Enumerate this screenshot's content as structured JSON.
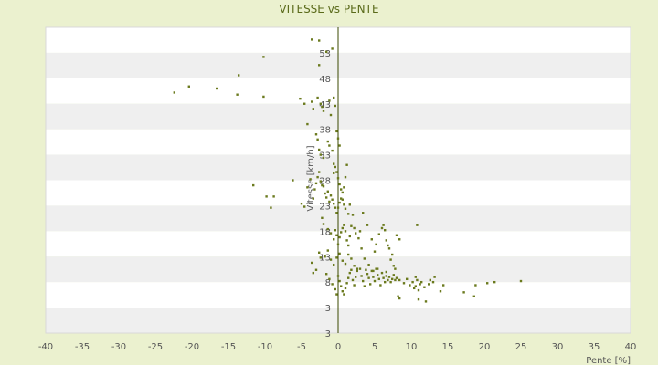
{
  "chart_data": {
    "type": "scatter",
    "title": "VITESSE vs PENTE",
    "xlabel": "Pente [%]",
    "ylabel": "Vitesse [km/h]",
    "xlim": [
      -40,
      40
    ],
    "ylim": [
      -2,
      58
    ],
    "x_ticks": [
      -40,
      -35,
      -30,
      -25,
      -20,
      -15,
      -10,
      -5,
      0,
      5,
      10,
      15,
      20,
      25,
      30,
      35,
      40
    ],
    "y_ticks": [
      3,
      8,
      13,
      18,
      23,
      28,
      33,
      38,
      43,
      48,
      53
    ],
    "y_tick_labels": [
      "3",
      "8",
      "13",
      "18",
      "23",
      "28",
      "33",
      "38",
      "43",
      "48",
      "53"
    ],
    "y_extra_tick_label": "3",
    "grid": true,
    "colors": {
      "background": "#ebf1cf",
      "band_light": "#ffffff",
      "band_dark": "#efefef",
      "point": "#6b7a1e",
      "axis": "#3b4a00"
    },
    "series": [
      {
        "points": [
          [
            -22.4,
            45.2
          ],
          [
            -20.4,
            46.4
          ],
          [
            -16.6,
            46.0
          ],
          [
            -13.6,
            48.6
          ],
          [
            -13.8,
            44.8
          ],
          [
            -10.2,
            52.2
          ],
          [
            -10.2,
            44.4
          ],
          [
            -11.6,
            27.0
          ],
          [
            -9.8,
            24.8
          ],
          [
            -8.8,
            24.8
          ],
          [
            -9.2,
            22.6
          ],
          [
            -6.2,
            28.0
          ],
          [
            -5.2,
            44.0
          ],
          [
            -4.6,
            43.0
          ],
          [
            -4.2,
            39.0
          ],
          [
            -3.6,
            43.4
          ],
          [
            -3.4,
            42.0
          ],
          [
            -2.8,
            44.2
          ],
          [
            -2.4,
            43.0
          ],
          [
            -2.2,
            42.4
          ],
          [
            -2.0,
            41.6
          ],
          [
            -3.6,
            55.6
          ],
          [
            -2.6,
            55.4
          ],
          [
            -2.6,
            50.6
          ],
          [
            -1.6,
            53.2
          ],
          [
            -0.8,
            53.8
          ],
          [
            -1.2,
            43.6
          ],
          [
            -1.0,
            40.8
          ],
          [
            -0.6,
            44.2
          ],
          [
            -0.4,
            42.6
          ],
          [
            -3.0,
            37.0
          ],
          [
            -2.8,
            36.0
          ],
          [
            -2.6,
            34.0
          ],
          [
            -2.4,
            33.0
          ],
          [
            -2.0,
            32.4
          ],
          [
            -1.4,
            35.6
          ],
          [
            -1.2,
            34.8
          ],
          [
            -0.8,
            33.8
          ],
          [
            -0.6,
            31.2
          ],
          [
            -0.2,
            37.6
          ],
          [
            0.0,
            36.2
          ],
          [
            0.2,
            34.8
          ],
          [
            -5.0,
            23.4
          ],
          [
            -4.6,
            22.8
          ],
          [
            -4.2,
            26.6
          ],
          [
            -3.8,
            28.2
          ],
          [
            -3.4,
            24.4
          ],
          [
            -3.2,
            26.2
          ],
          [
            -3.0,
            27.4
          ],
          [
            -2.8,
            28.6
          ],
          [
            -2.6,
            29.6
          ],
          [
            -2.4,
            27.8
          ],
          [
            -2.2,
            27.0
          ],
          [
            -2.0,
            26.8
          ],
          [
            -1.8,
            25.4
          ],
          [
            -1.6,
            24.6
          ],
          [
            -1.4,
            25.8
          ],
          [
            -1.2,
            23.8
          ],
          [
            -1.0,
            25.0
          ],
          [
            -0.8,
            24.2
          ],
          [
            -0.6,
            23.4
          ],
          [
            -0.4,
            22.6
          ],
          [
            -0.2,
            21.6
          ],
          [
            0.0,
            22.6
          ],
          [
            0.2,
            23.6
          ],
          [
            0.4,
            24.4
          ],
          [
            0.6,
            25.6
          ],
          [
            0.8,
            26.6
          ],
          [
            1.0,
            28.6
          ],
          [
            1.2,
            31.0
          ],
          [
            -0.6,
            29.4
          ],
          [
            -0.4,
            30.6
          ],
          [
            -0.2,
            29.6
          ],
          [
            0.0,
            28.4
          ],
          [
            0.2,
            27.2
          ],
          [
            0.4,
            26.2
          ],
          [
            0.6,
            24.2
          ],
          [
            0.8,
            23.2
          ],
          [
            1.0,
            22.4
          ],
          [
            1.4,
            21.4
          ],
          [
            1.6,
            23.2
          ],
          [
            2.0,
            21.2
          ],
          [
            3.4,
            21.6
          ],
          [
            -2.2,
            20.6
          ],
          [
            -2.0,
            19.4
          ],
          [
            -1.4,
            18.4
          ],
          [
            -1.0,
            17.6
          ],
          [
            -0.6,
            16.4
          ],
          [
            -0.4,
            18.2
          ],
          [
            -0.2,
            17.2
          ],
          [
            0.0,
            15.4
          ],
          [
            0.2,
            16.8
          ],
          [
            0.4,
            17.8
          ],
          [
            0.6,
            18.6
          ],
          [
            0.8,
            19.2
          ],
          [
            1.0,
            18.0
          ],
          [
            1.2,
            16.2
          ],
          [
            1.4,
            15.2
          ],
          [
            1.6,
            17.0
          ],
          [
            1.8,
            19.0
          ],
          [
            2.2,
            18.6
          ],
          [
            2.4,
            17.6
          ],
          [
            2.8,
            16.6
          ],
          [
            3.0,
            18.0
          ],
          [
            3.2,
            14.6
          ],
          [
            -1.8,
            13.0
          ],
          [
            -1.4,
            14.2
          ],
          [
            -1.0,
            12.4
          ],
          [
            -0.6,
            11.4
          ],
          [
            -0.2,
            12.8
          ],
          [
            0.2,
            13.6
          ],
          [
            0.6,
            12.2
          ],
          [
            1.0,
            11.6
          ],
          [
            1.4,
            13.4
          ],
          [
            1.8,
            12.6
          ],
          [
            2.2,
            11.2
          ],
          [
            2.6,
            10.6
          ],
          [
            -3.6,
            11.8
          ],
          [
            -3.4,
            9.8
          ],
          [
            -3.0,
            10.4
          ],
          [
            -2.6,
            13.8
          ],
          [
            -2.4,
            12.8
          ],
          [
            -1.6,
            9.6
          ],
          [
            -1.2,
            8.6
          ],
          [
            -0.8,
            7.6
          ],
          [
            -0.4,
            6.6
          ],
          [
            -0.2,
            5.6
          ],
          [
            0.0,
            9.2
          ],
          [
            0.2,
            8.2
          ],
          [
            0.4,
            7.2
          ],
          [
            0.6,
            6.2
          ],
          [
            0.8,
            5.6
          ],
          [
            1.0,
            6.8
          ],
          [
            1.2,
            7.8
          ],
          [
            1.4,
            8.8
          ],
          [
            1.6,
            9.8
          ],
          [
            1.8,
            10.4
          ],
          [
            2.0,
            8.4
          ],
          [
            2.2,
            7.4
          ],
          [
            2.4,
            9.0
          ],
          [
            2.6,
            10.2
          ],
          [
            3.0,
            10.6
          ],
          [
            3.2,
            9.2
          ],
          [
            3.4,
            8.2
          ],
          [
            3.6,
            7.2
          ],
          [
            3.8,
            10.4
          ],
          [
            4.0,
            9.6
          ],
          [
            4.2,
            8.8
          ],
          [
            4.4,
            7.6
          ],
          [
            4.6,
            10.2
          ],
          [
            4.8,
            9.0
          ],
          [
            5.0,
            8.2
          ],
          [
            5.2,
            10.6
          ],
          [
            5.4,
            9.4
          ],
          [
            5.6,
            8.6
          ],
          [
            5.8,
            7.4
          ],
          [
            6.0,
            9.8
          ],
          [
            6.2,
            8.8
          ],
          [
            6.4,
            8.0
          ],
          [
            6.6,
            9.2
          ],
          [
            6.8,
            8.4
          ],
          [
            7.0,
            9.0
          ],
          [
            7.2,
            8.0
          ],
          [
            7.4,
            8.6
          ],
          [
            7.6,
            9.4
          ],
          [
            7.8,
            8.4
          ],
          [
            8.0,
            8.8
          ],
          [
            5.0,
            14.0
          ],
          [
            5.2,
            15.4
          ],
          [
            5.6,
            17.4
          ],
          [
            6.0,
            18.6
          ],
          [
            6.2,
            19.2
          ],
          [
            6.4,
            18.2
          ],
          [
            6.6,
            16.2
          ],
          [
            6.8,
            15.2
          ],
          [
            7.2,
            12.4
          ],
          [
            7.6,
            11.2
          ],
          [
            7.4,
            13.4
          ],
          [
            8.0,
            17.2
          ],
          [
            8.4,
            16.4
          ],
          [
            7.0,
            14.6
          ],
          [
            4.0,
            19.2
          ],
          [
            4.6,
            16.4
          ],
          [
            3.6,
            12.6
          ],
          [
            4.2,
            11.4
          ],
          [
            4.8,
            10.2
          ],
          [
            5.4,
            10.6
          ],
          [
            6.6,
            10.0
          ],
          [
            7.8,
            10.6
          ],
          [
            8.4,
            8.4
          ],
          [
            9.0,
            7.8
          ],
          [
            9.4,
            8.6
          ],
          [
            9.8,
            7.4
          ],
          [
            10.2,
            8.0
          ],
          [
            10.4,
            6.8
          ],
          [
            10.6,
            7.2
          ],
          [
            10.8,
            8.4
          ],
          [
            11.0,
            6.4
          ],
          [
            11.2,
            7.6
          ],
          [
            11.4,
            8.0
          ],
          [
            11.8,
            7.0
          ],
          [
            12.4,
            7.6
          ],
          [
            12.6,
            8.4
          ],
          [
            13.0,
            8.0
          ],
          [
            13.2,
            9.0
          ],
          [
            14.0,
            6.2
          ],
          [
            14.4,
            7.4
          ],
          [
            10.6,
            9.0
          ],
          [
            11.0,
            4.6
          ],
          [
            12.0,
            4.2
          ],
          [
            8.4,
            4.8
          ],
          [
            8.2,
            5.2
          ],
          [
            10.8,
            19.2
          ],
          [
            17.2,
            6.0
          ],
          [
            18.6,
            5.2
          ],
          [
            18.8,
            7.4
          ],
          [
            20.4,
            7.8
          ],
          [
            21.4,
            8.0
          ],
          [
            25.0,
            8.2
          ]
        ]
      }
    ]
  }
}
